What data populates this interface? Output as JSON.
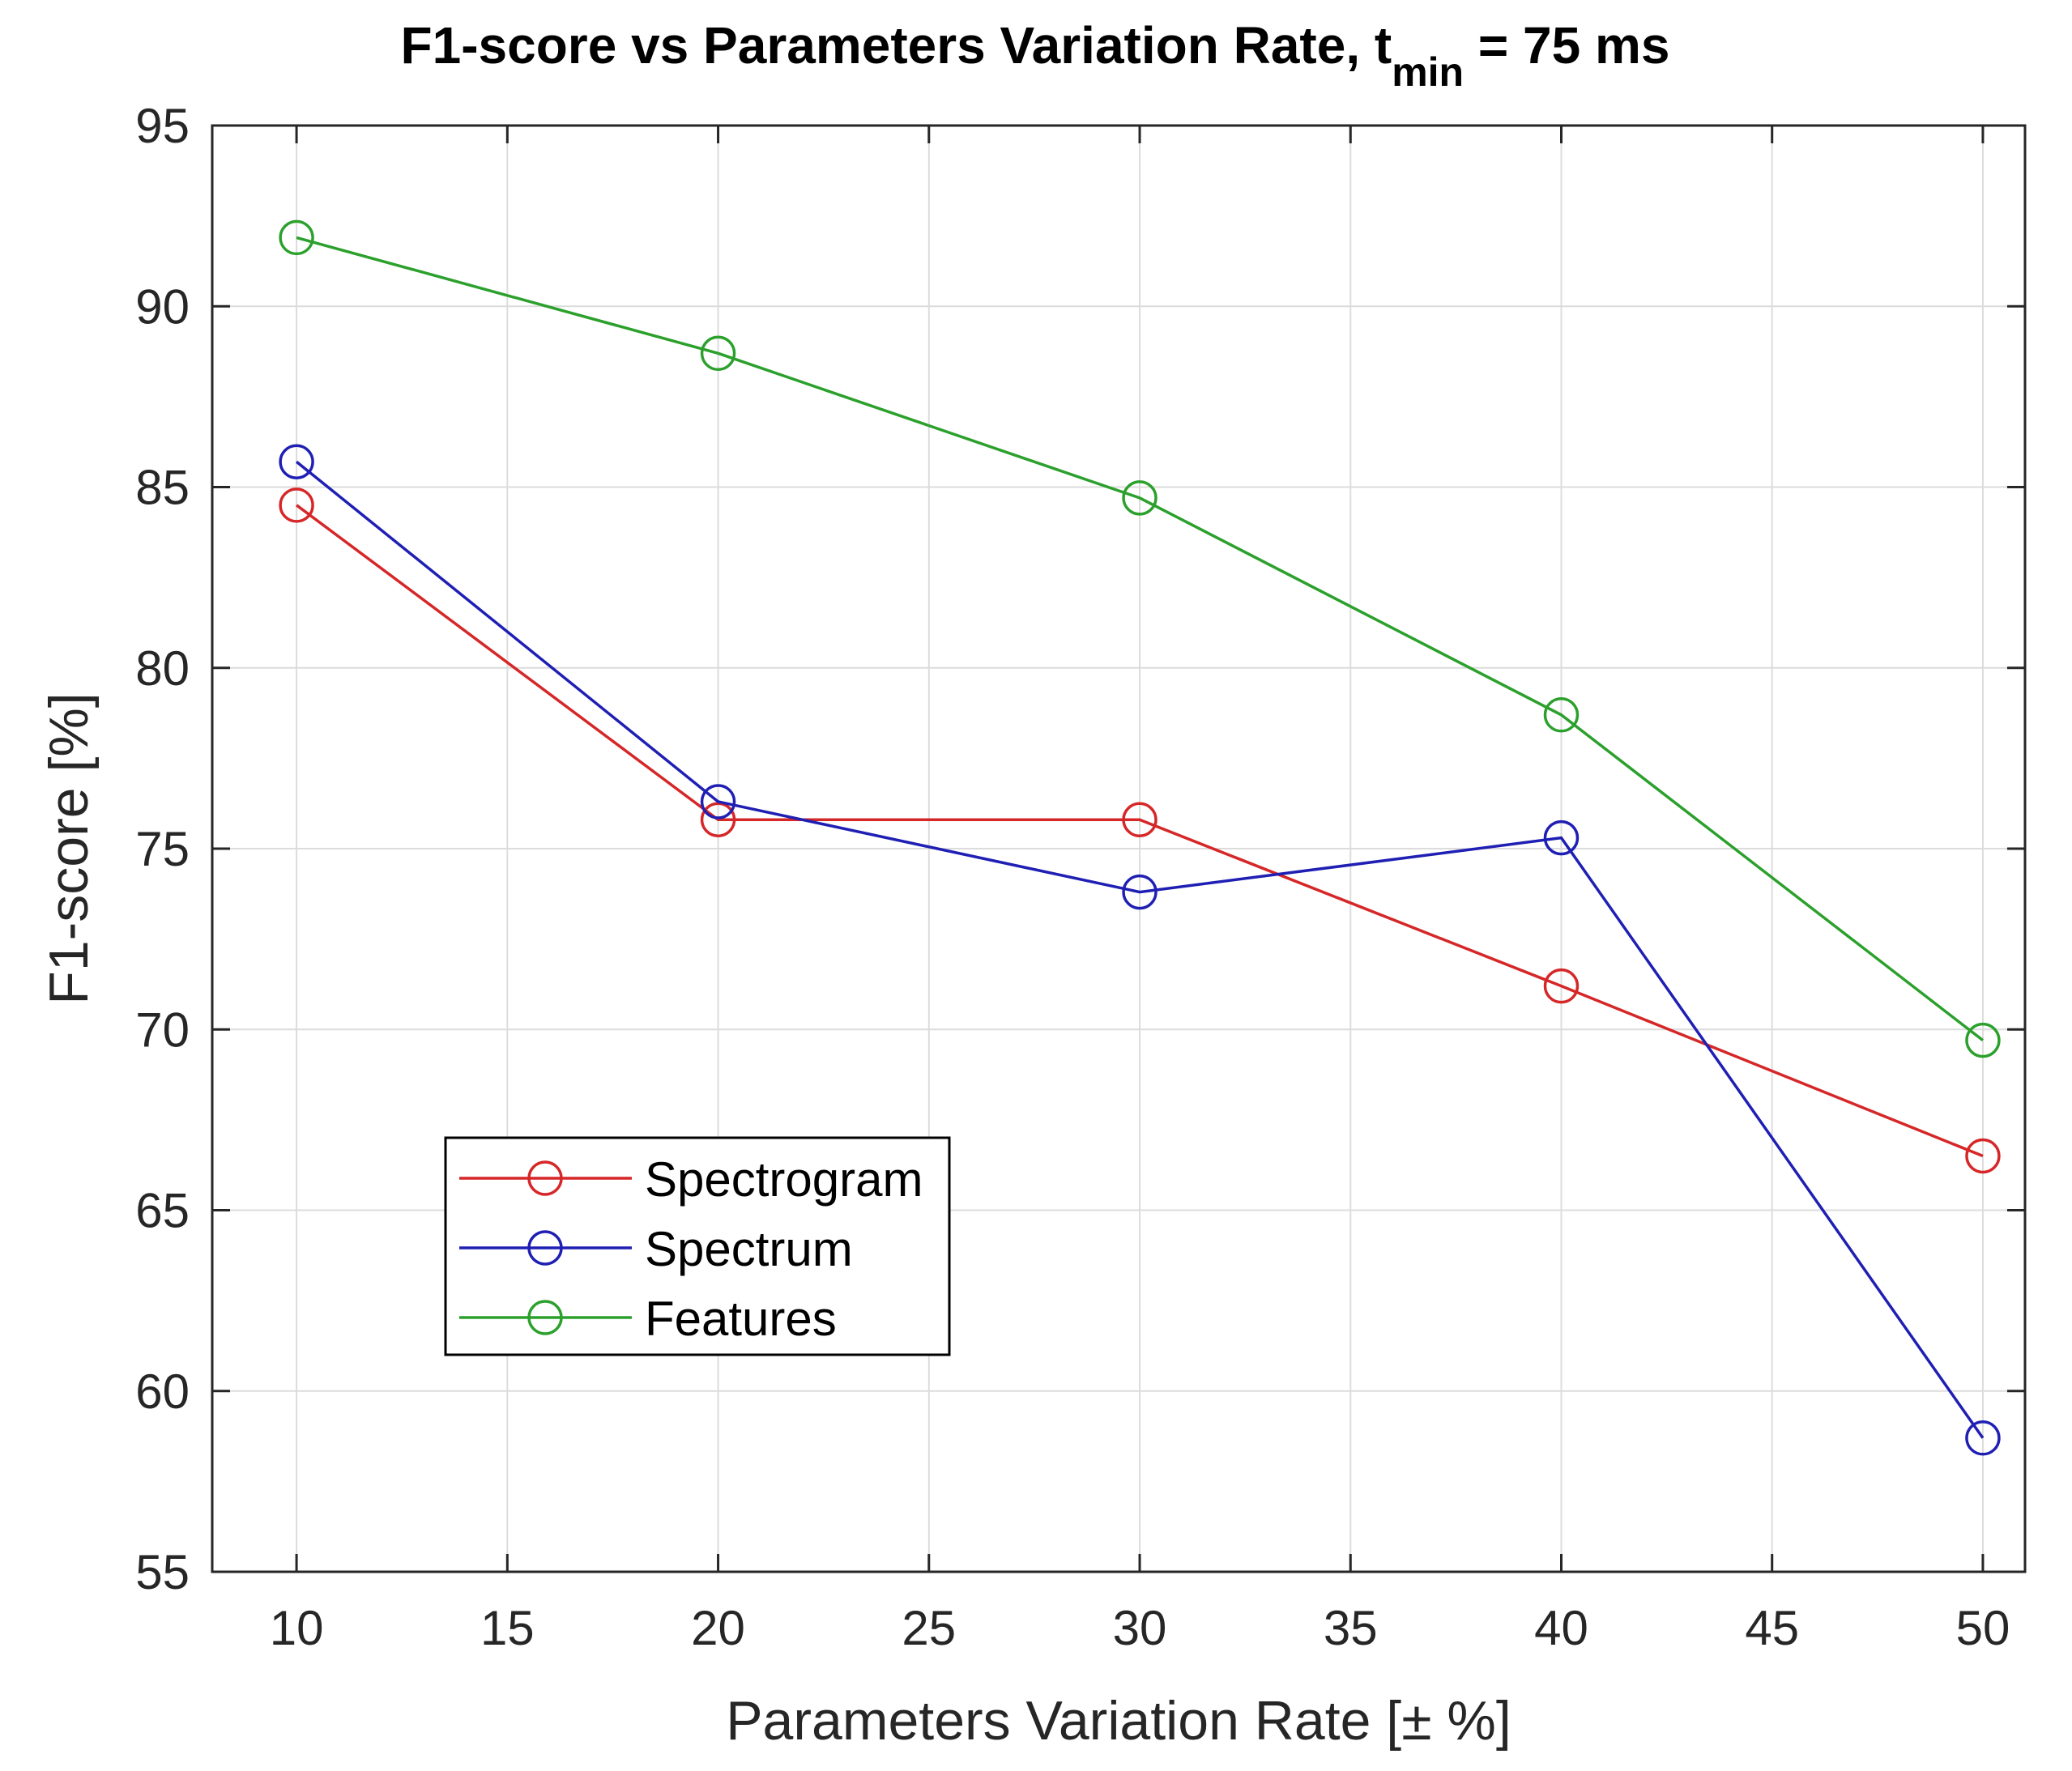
{
  "chart_data": {
    "type": "line",
    "title": "F1-score vs Parameters Variation Rate, t",
    "title_subscript": "min",
    "title_suffix": " = 75 ms",
    "xlabel": "Parameters Variation Rate [± %]",
    "ylabel": "F1-score [%]",
    "xlim": [
      8,
      51
    ],
    "ylim": [
      55,
      95
    ],
    "x_ticks": [
      10,
      15,
      20,
      25,
      30,
      35,
      40,
      45,
      50
    ],
    "y_ticks": [
      55,
      60,
      65,
      70,
      75,
      80,
      85,
      90,
      95
    ],
    "x_tick_labels": [
      "10",
      "15",
      "20",
      "25",
      "30",
      "35",
      "40",
      "45",
      "50"
    ],
    "y_tick_labels": [
      "55",
      "60",
      "65",
      "70",
      "75",
      "80",
      "85",
      "90",
      "95"
    ],
    "grid": true,
    "legend_position": "lower-left",
    "x": [
      10,
      20,
      30,
      40,
      50
    ],
    "series": [
      {
        "name": "Spectrogram",
        "color": "#d62728",
        "marker": "circle",
        "values": [
          84.5,
          75.8,
          75.8,
          71.2,
          66.5
        ]
      },
      {
        "name": "Spectrum",
        "color": "#1f1fb4",
        "marker": "circle",
        "values": [
          85.7,
          76.3,
          73.8,
          75.3,
          58.7
        ]
      },
      {
        "name": "Features",
        "color": "#2ca02c",
        "marker": "circle",
        "values": [
          91.9,
          88.7,
          84.7,
          78.7,
          69.7
        ]
      }
    ]
  }
}
